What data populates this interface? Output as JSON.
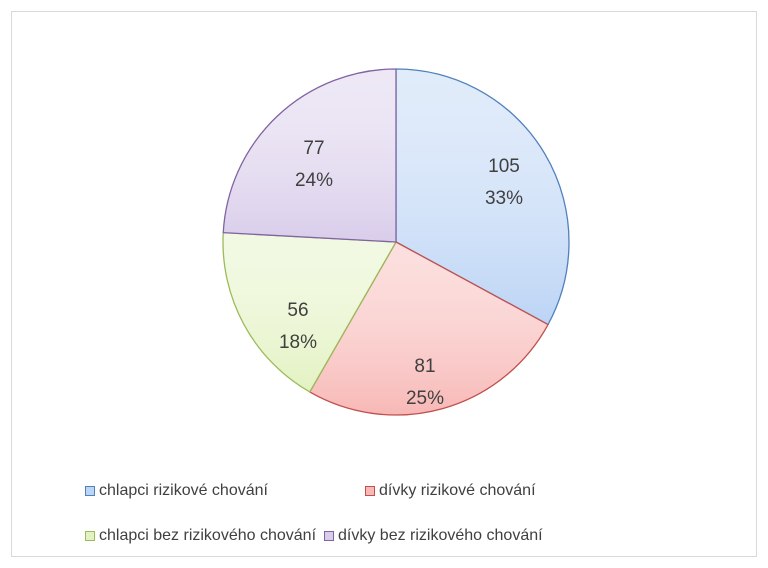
{
  "chart_data": {
    "type": "pie",
    "title": "",
    "categories": [
      "chlapci rizikové chování",
      "dívky rizikové chování",
      "chlapci bez rizikového chování",
      "dívky bez rizikového chování"
    ],
    "values": [
      105,
      81,
      56,
      77
    ],
    "percent_labels": [
      "33%",
      "25%",
      "18%",
      "24%"
    ],
    "value_labels": [
      "105",
      "81",
      "56",
      "77"
    ],
    "colors": {
      "fill": [
        "#bcd4f5",
        "#f7b8b6",
        "#e3f2c2",
        "#d9cdea"
      ],
      "stroke": [
        "#4f81bd",
        "#c0504d",
        "#9bbb59",
        "#8064a2"
      ]
    },
    "start_angle": "12 o'clock",
    "direction": "clockwise",
    "legend_position": "bottom"
  }
}
